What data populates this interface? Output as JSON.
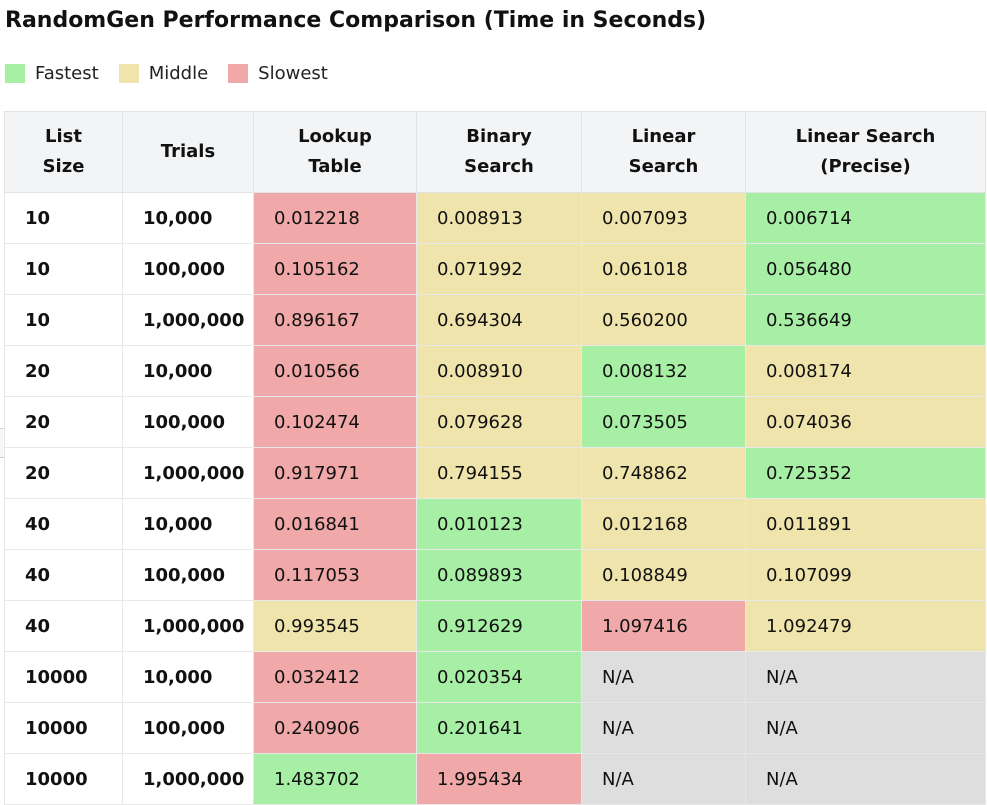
{
  "title": "RandomGen Performance Comparison (Time in Seconds)",
  "legend": [
    {
      "label": "Fastest",
      "color": "#a8efa6"
    },
    {
      "label": "Middle",
      "color": "#efe4ab"
    },
    {
      "label": "Slowest",
      "color": "#f0a8a8"
    }
  ],
  "na_color": "#dedede",
  "table": {
    "headers": [
      [
        "List",
        "Size"
      ],
      [
        "Trials"
      ],
      [
        "Lookup",
        "Table"
      ],
      [
        "Binary",
        "Search"
      ],
      [
        "Linear",
        "Search"
      ],
      [
        "Linear Search",
        "(Precise)"
      ]
    ],
    "rows": [
      {
        "size": "10",
        "trials": "10,000",
        "cells": [
          {
            "v": "0.012218",
            "rank": "slow"
          },
          {
            "v": "0.008913",
            "rank": "mid"
          },
          {
            "v": "0.007093",
            "rank": "mid"
          },
          {
            "v": "0.006714",
            "rank": "fast"
          }
        ]
      },
      {
        "size": "10",
        "trials": "100,000",
        "cells": [
          {
            "v": "0.105162",
            "rank": "slow"
          },
          {
            "v": "0.071992",
            "rank": "mid"
          },
          {
            "v": "0.061018",
            "rank": "mid"
          },
          {
            "v": "0.056480",
            "rank": "fast"
          }
        ]
      },
      {
        "size": "10",
        "trials": "1,000,000",
        "cells": [
          {
            "v": "0.896167",
            "rank": "slow"
          },
          {
            "v": "0.694304",
            "rank": "mid"
          },
          {
            "v": "0.560200",
            "rank": "mid"
          },
          {
            "v": "0.536649",
            "rank": "fast"
          }
        ]
      },
      {
        "size": "20",
        "trials": "10,000",
        "cells": [
          {
            "v": "0.010566",
            "rank": "slow"
          },
          {
            "v": "0.008910",
            "rank": "mid"
          },
          {
            "v": "0.008132",
            "rank": "fast"
          },
          {
            "v": "0.008174",
            "rank": "mid"
          }
        ]
      },
      {
        "size": "20",
        "trials": "100,000",
        "cells": [
          {
            "v": "0.102474",
            "rank": "slow"
          },
          {
            "v": "0.079628",
            "rank": "mid"
          },
          {
            "v": "0.073505",
            "rank": "fast"
          },
          {
            "v": "0.074036",
            "rank": "mid"
          }
        ]
      },
      {
        "size": "20",
        "trials": "1,000,000",
        "cells": [
          {
            "v": "0.917971",
            "rank": "slow"
          },
          {
            "v": "0.794155",
            "rank": "mid"
          },
          {
            "v": "0.748862",
            "rank": "mid"
          },
          {
            "v": "0.725352",
            "rank": "fast"
          }
        ]
      },
      {
        "size": "40",
        "trials": "10,000",
        "cells": [
          {
            "v": "0.016841",
            "rank": "slow"
          },
          {
            "v": "0.010123",
            "rank": "fast"
          },
          {
            "v": "0.012168",
            "rank": "mid"
          },
          {
            "v": "0.011891",
            "rank": "mid"
          }
        ]
      },
      {
        "size": "40",
        "trials": "100,000",
        "cells": [
          {
            "v": "0.117053",
            "rank": "slow"
          },
          {
            "v": "0.089893",
            "rank": "fast"
          },
          {
            "v": "0.108849",
            "rank": "mid"
          },
          {
            "v": "0.107099",
            "rank": "mid"
          }
        ]
      },
      {
        "size": "40",
        "trials": "1,000,000",
        "cells": [
          {
            "v": "0.993545",
            "rank": "mid"
          },
          {
            "v": "0.912629",
            "rank": "fast"
          },
          {
            "v": "1.097416",
            "rank": "slow"
          },
          {
            "v": "1.092479",
            "rank": "mid"
          }
        ]
      },
      {
        "size": "10000",
        "trials": "10,000",
        "cells": [
          {
            "v": "0.032412",
            "rank": "slow"
          },
          {
            "v": "0.020354",
            "rank": "fast"
          },
          {
            "v": "N/A",
            "rank": "na"
          },
          {
            "v": "N/A",
            "rank": "na"
          }
        ]
      },
      {
        "size": "10000",
        "trials": "100,000",
        "cells": [
          {
            "v": "0.240906",
            "rank": "slow"
          },
          {
            "v": "0.201641",
            "rank": "fast"
          },
          {
            "v": "N/A",
            "rank": "na"
          },
          {
            "v": "N/A",
            "rank": "na"
          }
        ]
      },
      {
        "size": "10000",
        "trials": "1,000,000",
        "cells": [
          {
            "v": "1.483702",
            "rank": "fast"
          },
          {
            "v": "1.995434",
            "rank": "slow"
          },
          {
            "v": "N/A",
            "rank": "na"
          },
          {
            "v": "N/A",
            "rank": "na"
          }
        ]
      }
    ]
  }
}
